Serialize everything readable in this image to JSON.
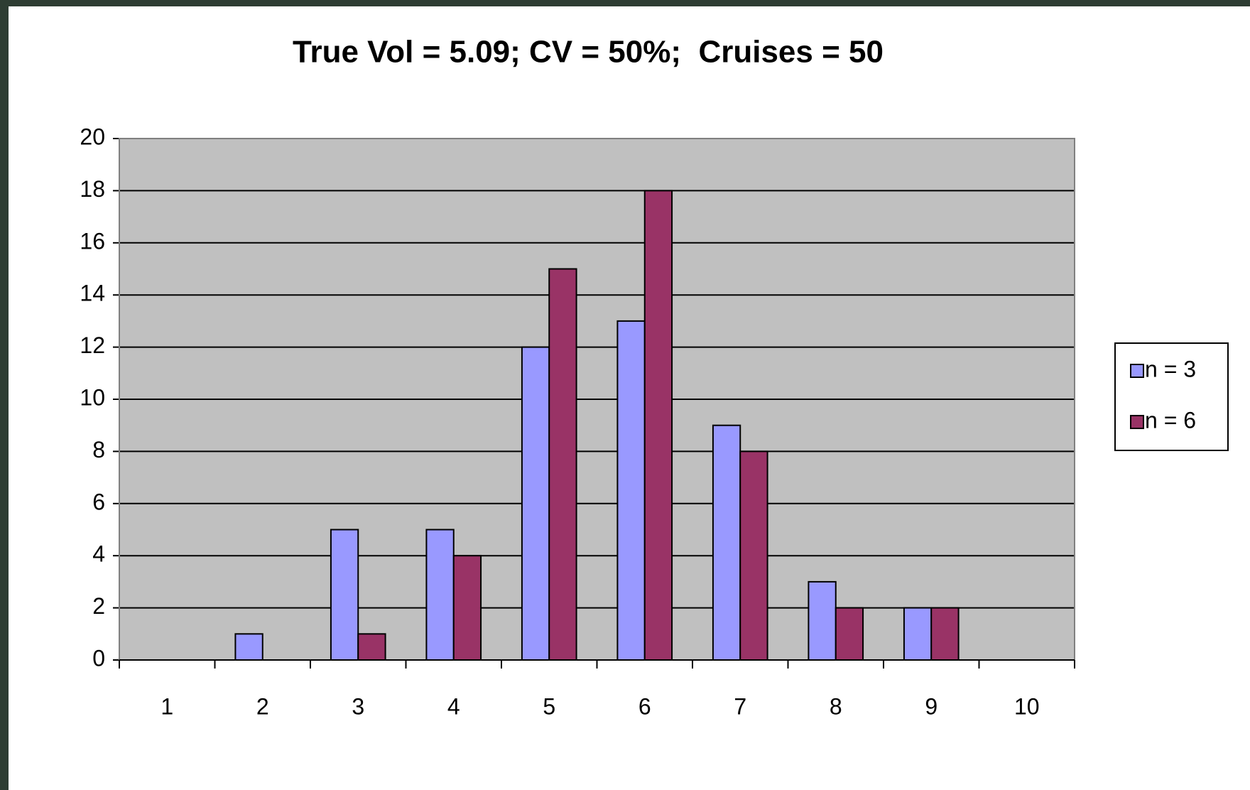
{
  "chart_data": {
    "type": "bar",
    "title": "True Vol = 5.09; CV = 50%;  Cruises = 50",
    "categories": [
      "1",
      "2",
      "3",
      "4",
      "5",
      "6",
      "7",
      "8",
      "9",
      "10"
    ],
    "series": [
      {
        "name": "n = 3",
        "color": "#9999ff",
        "values": [
          0,
          1,
          5,
          5,
          12,
          13,
          9,
          3,
          2,
          0
        ]
      },
      {
        "name": "n = 6",
        "color": "#993366",
        "values": [
          0,
          0,
          1,
          4,
          15,
          18,
          8,
          2,
          2,
          0
        ]
      }
    ],
    "ylim": [
      0,
      20
    ],
    "yticks": [
      0,
      2,
      4,
      6,
      8,
      10,
      12,
      14,
      16,
      18,
      20
    ],
    "grid": true,
    "legend": "right"
  }
}
